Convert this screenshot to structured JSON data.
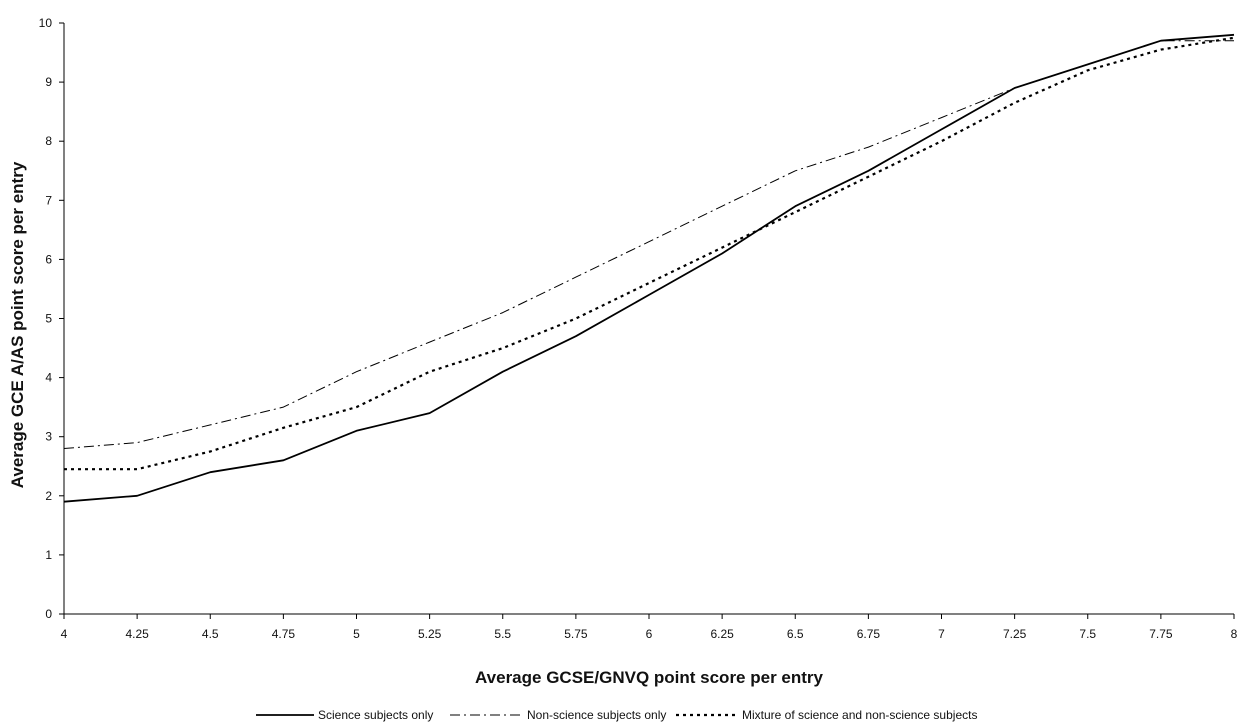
{
  "chart_data": {
    "type": "line",
    "title": "",
    "xlabel": "Average GCSE/GNVQ point score per entry",
    "ylabel": "Average GCE A/AS point score per entry",
    "xlim": [
      4,
      8
    ],
    "ylim": [
      0,
      10
    ],
    "x_ticks": [
      "4",
      "4.25",
      "4.5",
      "4.75",
      "5",
      "5.25",
      "5.5",
      "5.75",
      "6",
      "6.25",
      "6.5",
      "6.75",
      "7",
      "7.25",
      "7.5",
      "7.75",
      "8"
    ],
    "y_ticks": [
      "0",
      "1",
      "2",
      "3",
      "4",
      "5",
      "6",
      "7",
      "8",
      "9",
      "10"
    ],
    "grid": false,
    "legend_position": "bottom",
    "x": [
      4,
      4.25,
      4.5,
      4.75,
      5,
      5.25,
      5.5,
      5.75,
      6,
      6.25,
      6.5,
      6.75,
      7,
      7.25,
      7.5,
      7.75,
      8
    ],
    "series": [
      {
        "name": "Science subjects only",
        "style": "solid",
        "color": "#000000",
        "values": [
          1.9,
          2.0,
          2.4,
          2.6,
          3.1,
          3.4,
          4.1,
          4.7,
          5.4,
          6.1,
          6.9,
          7.5,
          8.2,
          8.9,
          9.3,
          9.7,
          9.8
        ]
      },
      {
        "name": "Non-science subjects only",
        "style": "dash-dot",
        "color": "#000000",
        "values": [
          2.8,
          2.9,
          3.2,
          3.5,
          4.1,
          4.6,
          5.1,
          5.7,
          6.3,
          6.9,
          7.5,
          7.9,
          8.4,
          8.9,
          9.3,
          9.7,
          9.7
        ]
      },
      {
        "name": "Mixture of science and non-science subjects",
        "style": "dotted",
        "color": "#000000",
        "values": [
          2.45,
          2.45,
          2.75,
          3.15,
          3.5,
          4.1,
          4.5,
          5.0,
          5.6,
          6.2,
          6.8,
          7.4,
          8.0,
          8.65,
          9.2,
          9.55,
          9.75
        ]
      }
    ]
  }
}
